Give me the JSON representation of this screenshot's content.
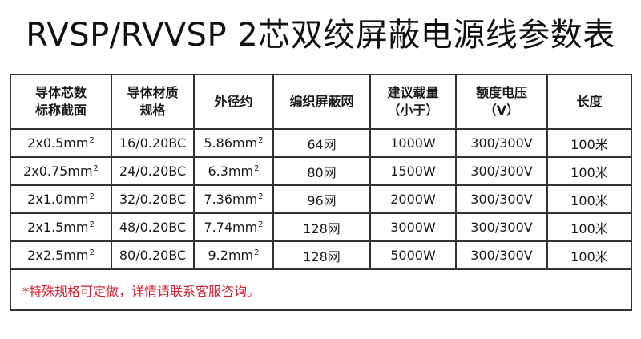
{
  "title": "RVSP/RVVSP 2芯双绞屏蔽电源线参数表",
  "headers": [
    [
      "导体芯数",
      "标称截面"
    ],
    [
      "导体材质",
      "规格"
    ],
    [
      "外径约"
    ],
    [
      "编织屏蔽网"
    ],
    [
      "建议载量",
      "（小于）"
    ],
    [
      "额度电压",
      "（V）"
    ],
    [
      "长度"
    ]
  ],
  "rows": [
    {
      "section": "2x0.5mm",
      "material": "16/0.20BC",
      "diameter": "5.86mm",
      "shield": "64网",
      "load": "1000W",
      "voltage": "300/300V",
      "length": "100米"
    },
    {
      "section": "2x0.75mm",
      "material": "24/0.20BC",
      "diameter": "6.3mm",
      "shield": "80网",
      "load": "1500W",
      "voltage": "300/300V",
      "length": "100米"
    },
    {
      "section": "2x1.0mm",
      "material": "32/0.20BC",
      "diameter": "7.36mm",
      "shield": "96网",
      "load": "2000W",
      "voltage": "300/300V",
      "length": "100米"
    },
    {
      "section": "2x1.5mm",
      "material": "48/0.20BC",
      "diameter": "7.74mm",
      "shield": "128网",
      "load": "3000W",
      "voltage": "300/300V",
      "length": "100米"
    },
    {
      "section": "2x2.5mm",
      "material": "80/0.20BC",
      "diameter": "9.2mm",
      "shield": "128网",
      "load": "5000W",
      "voltage": "300/300V",
      "length": "100米"
    }
  ],
  "unit_superscript": "2",
  "note": "*特殊规格可定做，详情请联系客服咨询。",
  "colors": {
    "note_text": "#d2202f",
    "border": "#333333"
  }
}
